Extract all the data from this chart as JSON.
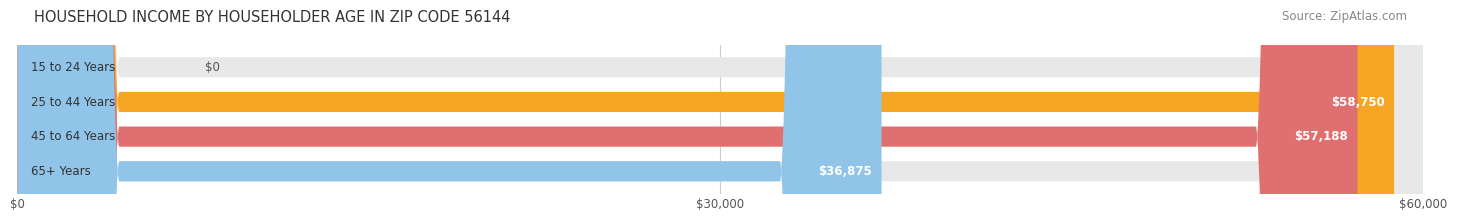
{
  "title": "HOUSEHOLD INCOME BY HOUSEHOLDER AGE IN ZIP CODE 56144",
  "source": "Source: ZipAtlas.com",
  "categories": [
    "15 to 24 Years",
    "25 to 44 Years",
    "45 to 64 Years",
    "65+ Years"
  ],
  "values": [
    0,
    58750,
    57188,
    36875
  ],
  "labels": [
    "$0",
    "$58,750",
    "$57,188",
    "$36,875"
  ],
  "bar_colors": [
    "#f48fb1",
    "#f5a623",
    "#e07070",
    "#90c4e8"
  ],
  "xlim": [
    0,
    60000
  ],
  "xticks": [
    0,
    30000,
    60000
  ],
  "xticklabels": [
    "$0",
    "$30,000",
    "$60,000"
  ],
  "title_fontsize": 10.5,
  "source_fontsize": 8.5,
  "label_fontsize": 8.5,
  "tick_fontsize": 8.5,
  "background_color": "#ffffff",
  "bar_height": 0.58,
  "figsize": [
    14.06,
    2.33
  ]
}
